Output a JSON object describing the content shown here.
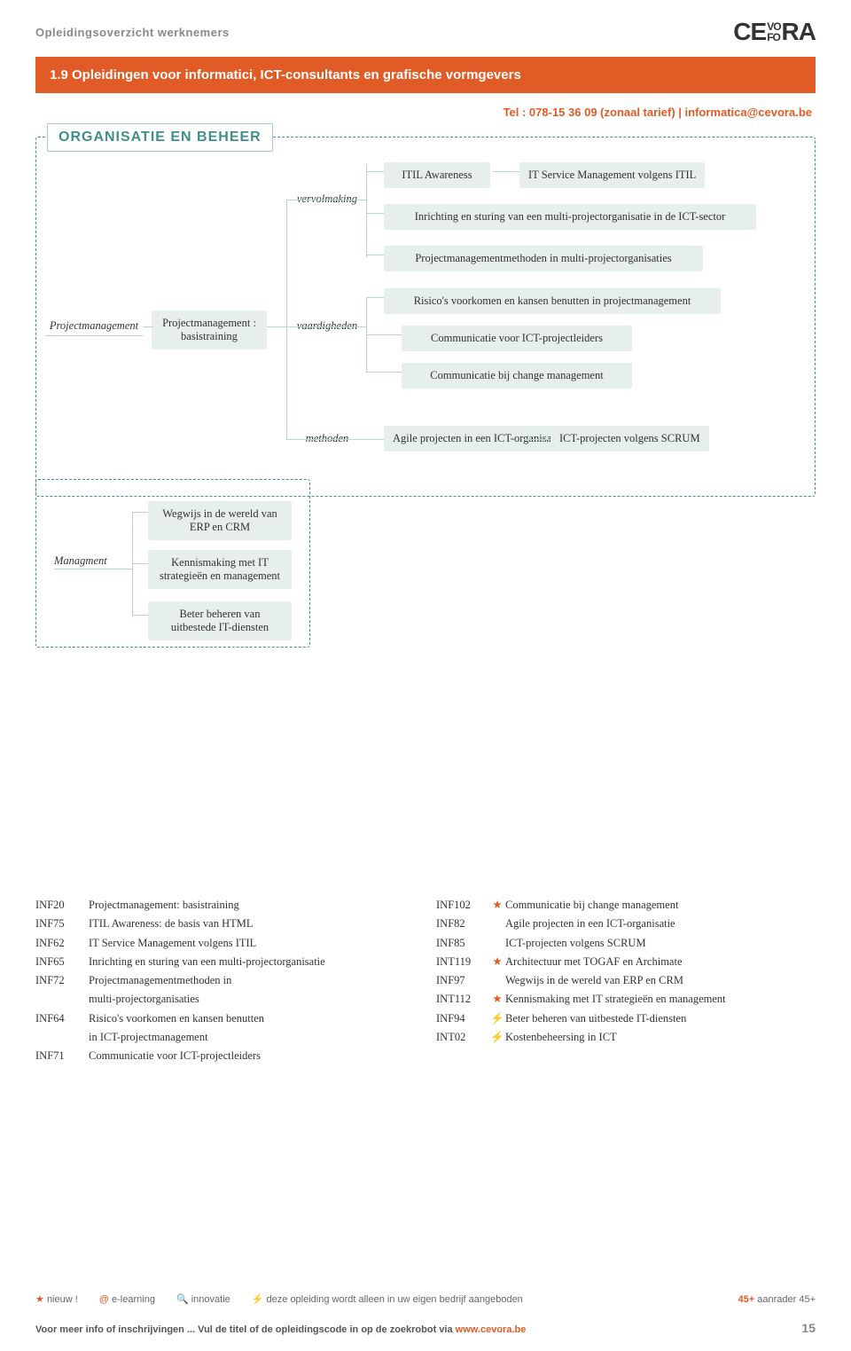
{
  "header": {
    "overline": "Opleidingsoverzicht werknemers",
    "logo_left": "CE",
    "logo_mid_top": "VO",
    "logo_mid_bot": "FO",
    "logo_right": "RA"
  },
  "title_bar": "1.9 Opleidingen voor informatici, ICT-consultants en grafische vormgevers",
  "subtitle": "Tel : 078-15 36 09 (zonaal tarief) | informatica@cevora.be",
  "section_label": "ORGANISATIE EN BEHEER",
  "diagram": {
    "root": "Projectmanagement",
    "level2": "Projectmanagement : basistraining",
    "branch1_label": "vervolmaking",
    "branch2_label": "vaardigheden",
    "branch3_label": "methoden",
    "v1_a": "ITIL Awareness",
    "v1_b": "IT Service Management volgens ITIL",
    "v1_c": "Inrichting en sturing van een multi-projectorganisatie in de ICT-sector",
    "v1_d": "Projectmanagementmethoden in multi-projectorganisaties",
    "v2_a": "Risico's voorkomen en kansen benutten in projectmanagement",
    "v2_b": "Communicatie voor ICT-projectleiders",
    "v2_c": "Communicatie bij change management",
    "v3_a": "Agile projecten in een ICT-organisatie",
    "v3_b": "ICT-projecten volgens SCRUM"
  },
  "diagram2": {
    "root": "Managment",
    "a": "Wegwijs in de wereld van ERP en CRM",
    "b": "Kennismaking met IT strategieën en management",
    "c": "Beter beheren van uitbestede IT-diensten"
  },
  "courses_left": [
    {
      "code": "INF20",
      "icon": "",
      "title": "Projectmanagement: basistraining"
    },
    {
      "code": "INF75",
      "icon": "",
      "title": "ITIL Awareness: de basis van HTML"
    },
    {
      "code": "INF62",
      "icon": "",
      "title": "IT Service Management volgens ITIL"
    },
    {
      "code": "INF65",
      "icon": "",
      "title": "Inrichting en sturing van een multi-projectorganisatie"
    },
    {
      "code": "INF72",
      "icon": "",
      "title": "Projectmanagementmethoden in"
    },
    {
      "code": "",
      "icon": "",
      "title": "multi-projectorganisaties"
    },
    {
      "code": "INF64",
      "icon": "",
      "title": "Risico's voorkomen en kansen benutten"
    },
    {
      "code": "",
      "icon": "",
      "title": "in ICT-projectmanagement"
    },
    {
      "code": "INF71",
      "icon": "",
      "title": "Communicatie voor ICT-projectleiders"
    }
  ],
  "courses_right": [
    {
      "code": "INF102",
      "icon": "★",
      "icon_class": "star",
      "title": "Communicatie bij change management"
    },
    {
      "code": "INF82",
      "icon": "",
      "icon_class": "",
      "title": "Agile projecten in een ICT-organisatie"
    },
    {
      "code": "INF85",
      "icon": "",
      "icon_class": "",
      "title": "ICT-projecten volgens SCRUM"
    },
    {
      "code": "INT119",
      "icon": "★",
      "icon_class": "star",
      "title": "Architectuur met TOGAF en Archimate"
    },
    {
      "code": "INF97",
      "icon": "",
      "icon_class": "",
      "title": "Wegwijs in de wereld van ERP en CRM"
    },
    {
      "code": "INT112",
      "icon": "★",
      "icon_class": "star",
      "title": "Kennismaking met IT strategieën en management"
    },
    {
      "code": "INF94",
      "icon": "⚡",
      "icon_class": "lightning",
      "title": "Beter beheren van uitbestede IT-diensten"
    },
    {
      "code": "INT02",
      "icon": "⚡",
      "icon_class": "lightning",
      "title": "Kostenbeheersing in ICT"
    }
  ],
  "legend": {
    "new": "nieuw !",
    "elearning": "e-learning",
    "innovatie": "innovatie",
    "inhouse": "deze opleiding wordt alleen in uw eigen bedrijf aangeboden",
    "plus45_a": "45+",
    "plus45_b": " aanrader 45+"
  },
  "footer": {
    "text_a": "Voor meer info of inschrijvingen ... Vul de titel of de opleidingscode in op de zoekrobot via ",
    "link": "www.cevora.be",
    "page": "15"
  },
  "colors": {
    "accent": "#e15b26",
    "node_bg": "#e6eeee",
    "border": "#418f8a"
  }
}
